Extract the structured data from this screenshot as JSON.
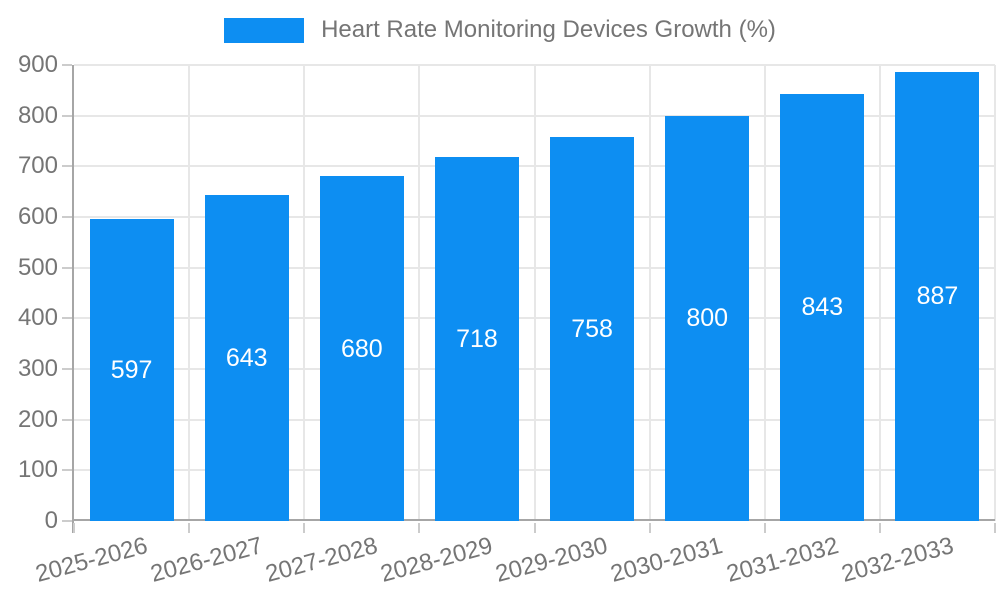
{
  "chart_data": {
    "type": "bar",
    "title": "Heart Rate Monitoring Devices Growth (%)",
    "categories": [
      "2025-2026",
      "2026-2027",
      "2027-2028",
      "2028-2029",
      "2029-2030",
      "2030-2031",
      "2031-2032",
      "2032-2033"
    ],
    "values": [
      597,
      643,
      680,
      718,
      758,
      800,
      843,
      887
    ],
    "xlabel": "",
    "ylabel": "",
    "ylim": [
      0,
      900
    ],
    "ytick_step": 100,
    "yticks": [
      "0",
      "100",
      "200",
      "300",
      "400",
      "500",
      "600",
      "700",
      "800",
      "900"
    ],
    "grid": true,
    "value_labels_shown": true,
    "legend": {
      "position": "top",
      "label": "Heart Rate Monitoring Devices Growth (%)"
    },
    "colors": {
      "bar": "#0d8ef2",
      "value_label_text": "#ffffff",
      "axis_text": "#757575",
      "gridline": "#e7e7e7",
      "axis_line": "#a6a6a6",
      "tick": "#cccccc",
      "background": "#ffffff"
    }
  }
}
